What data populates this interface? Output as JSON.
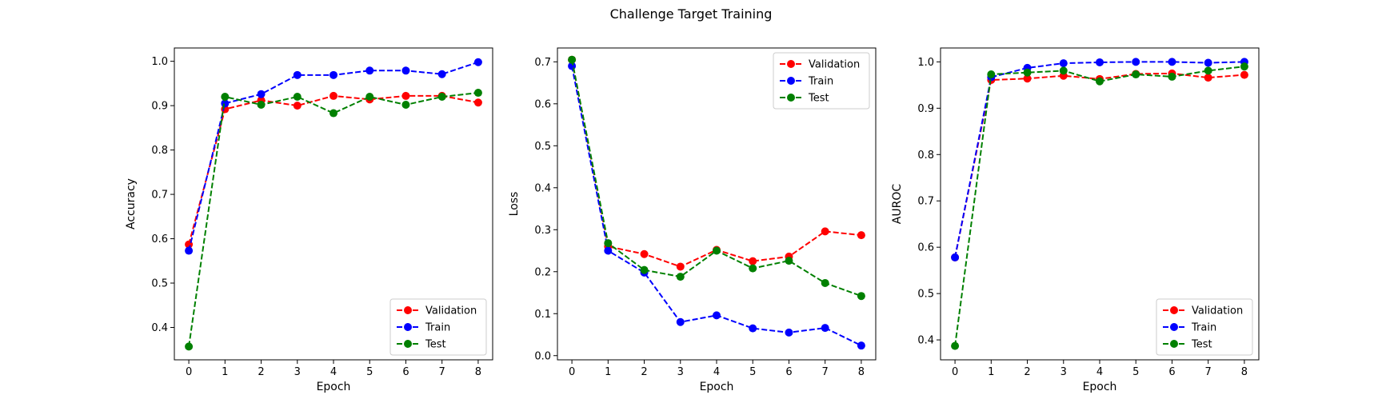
{
  "figure": {
    "title": "Challenge Target Training"
  },
  "colors": {
    "Validation": "#ff0000",
    "Train": "#0000ff",
    "Test": "#008000"
  },
  "chart_data": [
    {
      "type": "line",
      "xlabel": "Epoch",
      "ylabel": "Accuracy",
      "x": [
        0,
        1,
        2,
        3,
        4,
        5,
        6,
        7,
        8
      ],
      "xticks": [
        0,
        1,
        2,
        3,
        4,
        5,
        6,
        7,
        8
      ],
      "yticks": [
        0.4,
        0.5,
        0.6,
        0.7,
        0.8,
        0.9,
        1.0
      ],
      "ytick_labels": [
        "0.4",
        "0.5",
        "0.6",
        "0.7",
        "0.8",
        "0.9",
        "1.0"
      ],
      "xlim": [
        -0.4,
        8.4
      ],
      "ylim": [
        0.327,
        1.03
      ],
      "legend_position": "lower right",
      "grid": false,
      "series": [
        {
          "name": "Validation",
          "values": [
            0.587,
            0.892,
            0.912,
            0.9,
            0.922,
            0.914,
            0.922,
            0.922,
            0.907
          ]
        },
        {
          "name": "Train",
          "values": [
            0.573,
            0.905,
            0.926,
            0.969,
            0.969,
            0.979,
            0.979,
            0.971,
            0.998
          ]
        },
        {
          "name": "Test",
          "values": [
            0.357,
            0.92,
            0.902,
            0.92,
            0.883,
            0.92,
            0.902,
            0.92,
            0.929
          ]
        }
      ]
    },
    {
      "type": "line",
      "xlabel": "Epoch",
      "ylabel": "Loss",
      "x": [
        0,
        1,
        2,
        3,
        4,
        5,
        6,
        7,
        8
      ],
      "xticks": [
        0,
        1,
        2,
        3,
        4,
        5,
        6,
        7,
        8
      ],
      "yticks": [
        0.0,
        0.1,
        0.2,
        0.3,
        0.4,
        0.5,
        0.6,
        0.7
      ],
      "ytick_labels": [
        "0.0",
        "0.1",
        "0.2",
        "0.3",
        "0.4",
        "0.5",
        "0.6",
        "0.7"
      ],
      "xlim": [
        -0.4,
        8.4
      ],
      "ylim": [
        -0.01,
        0.733
      ],
      "legend_position": "upper right",
      "grid": false,
      "series": [
        {
          "name": "Validation",
          "values": [
            0.705,
            0.26,
            0.242,
            0.212,
            0.252,
            0.225,
            0.236,
            0.296,
            0.287
          ]
        },
        {
          "name": "Train",
          "values": [
            0.69,
            0.25,
            0.198,
            0.08,
            0.096,
            0.065,
            0.055,
            0.066,
            0.024
          ]
        },
        {
          "name": "Test",
          "values": [
            0.705,
            0.268,
            0.204,
            0.188,
            0.25,
            0.208,
            0.226,
            0.173,
            0.142
          ]
        }
      ]
    },
    {
      "type": "line",
      "xlabel": "Epoch",
      "ylabel": "AUROC",
      "x": [
        0,
        1,
        2,
        3,
        4,
        5,
        6,
        7,
        8
      ],
      "xticks": [
        0,
        1,
        2,
        3,
        4,
        5,
        6,
        7,
        8
      ],
      "yticks": [
        0.4,
        0.5,
        0.6,
        0.7,
        0.8,
        0.9,
        1.0
      ],
      "ytick_labels": [
        "0.4",
        "0.5",
        "0.6",
        "0.7",
        "0.8",
        "0.9",
        "1.0"
      ],
      "xlim": [
        -0.4,
        8.4
      ],
      "ylim": [
        0.357,
        1.03
      ],
      "legend_position": "lower right",
      "grid": false,
      "series": [
        {
          "name": "Validation",
          "values": [
            0.578,
            0.961,
            0.964,
            0.97,
            0.963,
            0.974,
            0.975,
            0.966,
            0.972
          ]
        },
        {
          "name": "Train",
          "values": [
            0.578,
            0.967,
            0.987,
            0.997,
            0.999,
            1.0,
            1.0,
            0.998,
            1.0
          ]
        },
        {
          "name": "Test",
          "values": [
            0.387,
            0.973,
            0.977,
            0.981,
            0.958,
            0.973,
            0.968,
            0.981,
            0.99
          ]
        }
      ]
    }
  ]
}
